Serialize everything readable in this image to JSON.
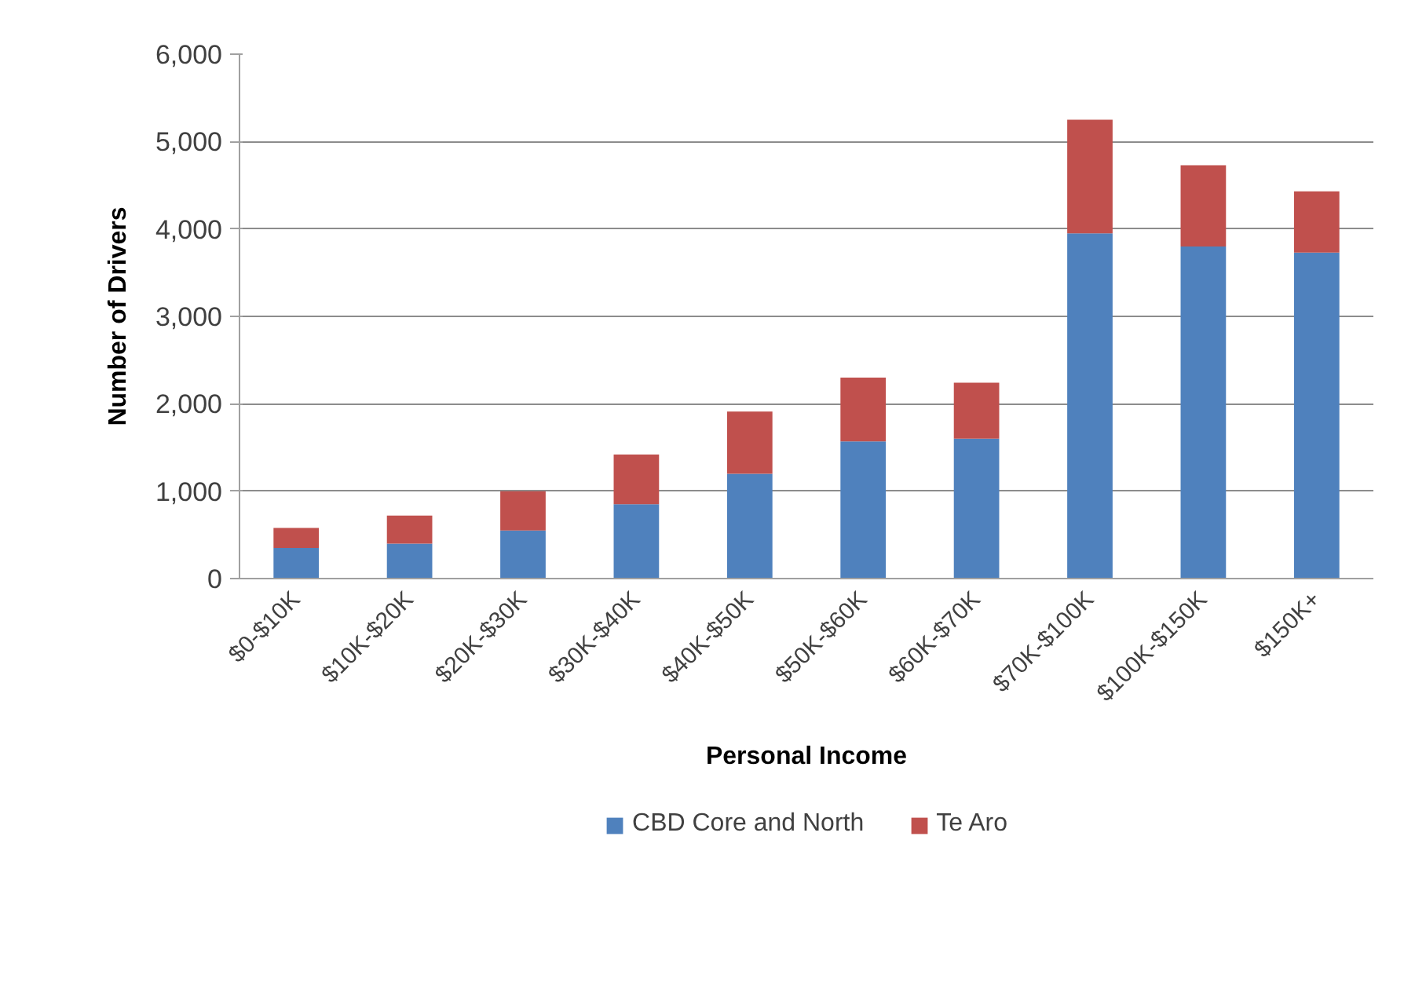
{
  "chart_data": {
    "type": "bar",
    "stacked": true,
    "xlabel": "Personal Income",
    "ylabel": "Number of Drivers",
    "categories": [
      "$0-$10K",
      "$10K-$20K",
      "$20K-$30K",
      "$30K-$40K",
      "$40K-$50K",
      "$50K-$60K",
      "$60K-$70K",
      "$70K-$100K",
      "$100K-$150K",
      "$150K+"
    ],
    "series": [
      {
        "name": "CBD Core and North",
        "color": "#4f81bd",
        "values": [
          350,
          400,
          550,
          850,
          1200,
          1570,
          1600,
          3950,
          3800,
          3730
        ]
      },
      {
        "name": "Te Aro",
        "color": "#c0504d",
        "values": [
          230,
          320,
          450,
          570,
          710,
          730,
          640,
          1300,
          930,
          700
        ]
      }
    ],
    "ylim": [
      0,
      6000
    ],
    "yticks": [
      0,
      {
        "value": 1000,
        "label": "1,000"
      },
      {
        "value": 2000,
        "label": "2,000"
      },
      {
        "value": 3000,
        "label": "3,000"
      },
      {
        "value": 4000,
        "label": "4,000"
      },
      {
        "value": 5000,
        "label": "5,000"
      },
      {
        "value": 6000,
        "label": "6,000"
      }
    ],
    "grid": "y",
    "legend": "bottom"
  }
}
